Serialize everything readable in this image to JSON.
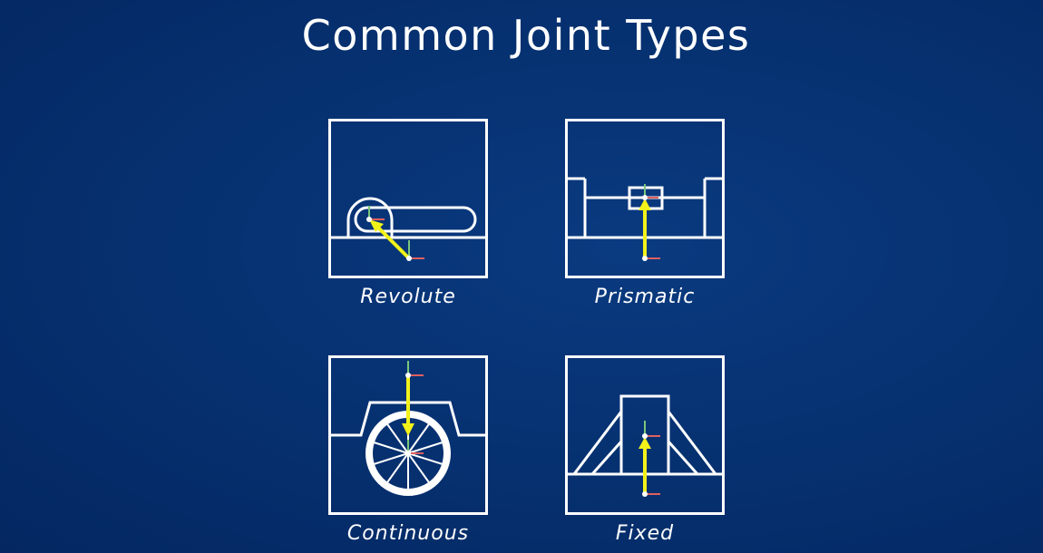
{
  "title": "Common Joint Types",
  "joints": [
    {
      "id": "revolute",
      "label": "Revolute"
    },
    {
      "id": "prismatic",
      "label": "Prismatic"
    },
    {
      "id": "continuous",
      "label": "Continuous"
    },
    {
      "id": "fixed",
      "label": "Fixed"
    }
  ],
  "colors": {
    "background": "#06306f",
    "lines": "#ffffff",
    "joint_arrow": "#f2f21a",
    "axis_green": "#7bc67b",
    "axis_red": "#e06060"
  }
}
